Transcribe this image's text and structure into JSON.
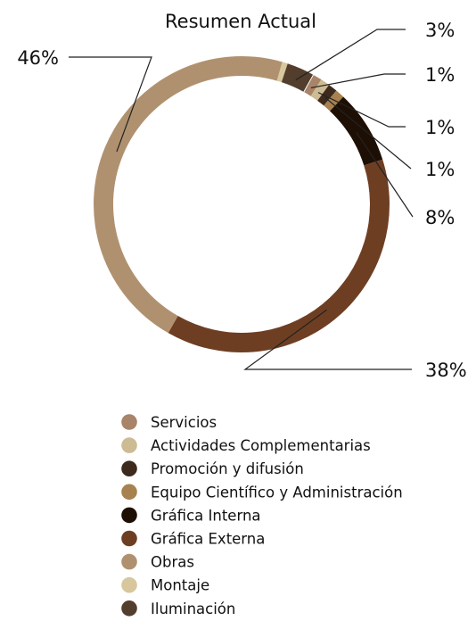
{
  "chart_data": {
    "type": "pie",
    "variant": "donut",
    "title": "Resumen Actual",
    "legend_position": "bottom",
    "series": [
      {
        "name": "Servicios",
        "value": 1,
        "label": "1%",
        "color": "#A88468"
      },
      {
        "name": "Actividades Complementarias",
        "value": 1,
        "label": "1%",
        "color": "#CDBB94"
      },
      {
        "name": "Promoción y difusión",
        "value": 1,
        "label": "1%",
        "color": "#3D2A1C"
      },
      {
        "name": "Equipo Científico y Administración",
        "value": 1,
        "label": "1%",
        "color": "#A7814F"
      },
      {
        "name": "Gráfica Interna",
        "value": 8,
        "label": "8%",
        "color": "#1E0F04"
      },
      {
        "name": "Gráfica Externa",
        "value": 38,
        "label": "38%",
        "color": "#6E3E23"
      },
      {
        "name": "Obras",
        "value": 46,
        "label": "46%",
        "color": "#B0916F"
      },
      {
        "name": "Montaje",
        "value": 0.6,
        "label": "",
        "color": "#D8C79D"
      },
      {
        "name": "Iluminación",
        "value": 3,
        "label": "3%",
        "color": "#533E2E"
      }
    ]
  }
}
